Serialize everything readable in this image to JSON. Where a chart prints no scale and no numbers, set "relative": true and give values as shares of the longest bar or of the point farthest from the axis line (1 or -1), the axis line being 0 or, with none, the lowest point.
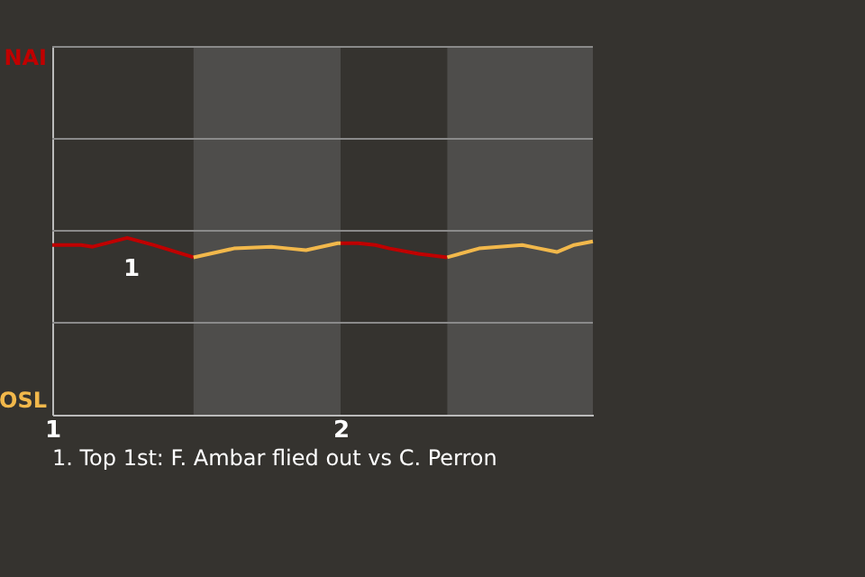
{
  "chart_data": {
    "type": "line",
    "relative": true,
    "xlim": [
      1,
      2.875
    ],
    "xticks": [
      1,
      2
    ],
    "marker": "none",
    "line_style": "solid",
    "ref_lines": [
      {
        "axis": "y",
        "value": 0.52,
        "color": "#8a8a8a"
      },
      {
        "axis": "y",
        "value": 1.04,
        "color": "#8a8a8a"
      },
      {
        "axis": "y",
        "value": 1.56,
        "color": "#8a8a8a"
      }
    ],
    "series": [
      {
        "color": "#c00000",
        "x": [
          1.0,
          1.1,
          1.14,
          1.26,
          1.35,
          1.49
        ],
        "values": [
          0.96,
          0.96,
          0.95,
          1.0,
          0.96,
          0.89
        ]
      },
      {
        "color": "#f2b84b",
        "x": [
          1.49,
          1.63,
          1.76,
          1.82,
          1.88,
          1.99,
          2.0
        ],
        "values": [
          0.89,
          0.94,
          0.95,
          0.94,
          0.93,
          0.97,
          0.97
        ]
      },
      {
        "color": "#c00000",
        "x": [
          2.0,
          2.06,
          2.12,
          2.17,
          2.27,
          2.37
        ],
        "values": [
          0.97,
          0.97,
          0.96,
          0.94,
          0.91,
          0.89
        ]
      },
      {
        "color": "#f2b84b",
        "x": [
          2.37,
          2.48,
          2.63,
          2.69,
          2.75,
          2.81,
          2.875
        ],
        "values": [
          0.89,
          0.94,
          0.96,
          0.94,
          0.92,
          0.96,
          0.98
        ]
      }
    ],
    "bands": [
      {
        "axis": "x",
        "from": 1.49,
        "to": 2.0,
        "color": "#4e4d4b"
      },
      {
        "axis": "x",
        "from": 2.37,
        "to": 2.875,
        "color": "#4e4d4b"
      }
    ],
    "annotations": [
      "NAI",
      "OSL",
      {
        "text": "1",
        "x": 1.35,
        "y": 0.96
      },
      "1. Top 1st: F. Ambar flied out vs C. Perron"
    ]
  }
}
